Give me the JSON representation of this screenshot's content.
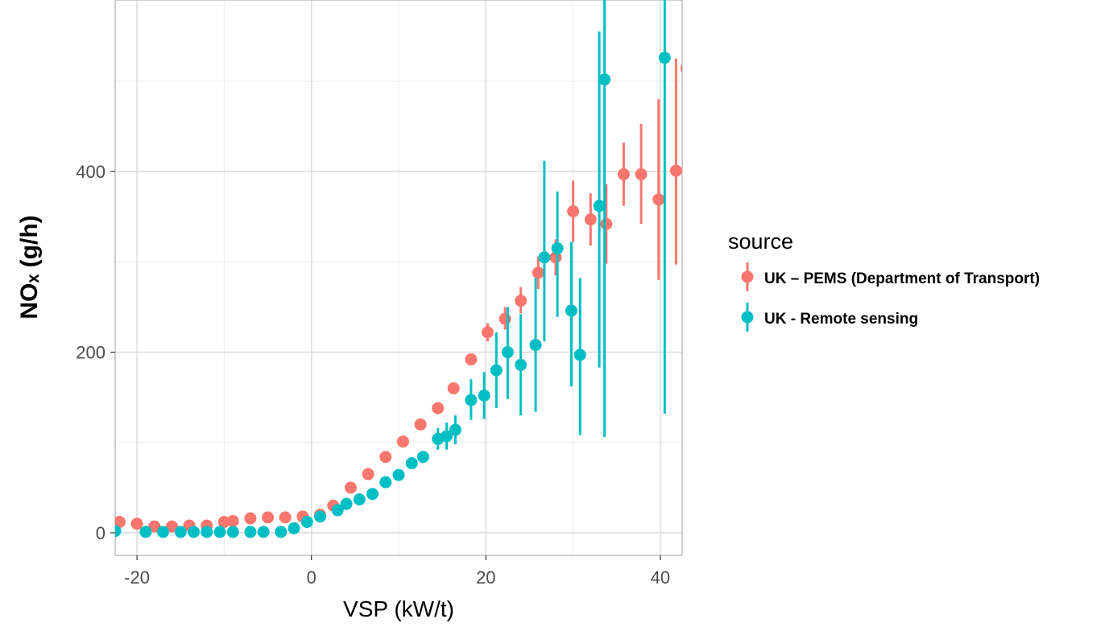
{
  "chart_data": {
    "type": "scatter",
    "xlabel": "VSP (kW/t)",
    "ylabel": "NOₓ (g/h)",
    "xlim": [
      -22.5,
      42.5
    ],
    "ylim": [
      -25,
      590
    ],
    "xticks": [
      -20,
      0,
      20,
      40
    ],
    "yticks": [
      0,
      200,
      400
    ],
    "xtick_labels": [
      "-20",
      "0",
      "20",
      "40"
    ],
    "ytick_labels": [
      "0",
      "200",
      "400"
    ],
    "grid": true,
    "legend": {
      "title": "source",
      "placement": "right"
    },
    "series": [
      {
        "name": "UK – PEMS (Department of Transport)",
        "color": "#f8766d",
        "points": [
          {
            "x": -22,
            "y": 12
          },
          {
            "x": -20,
            "y": 10
          },
          {
            "x": -18,
            "y": 7
          },
          {
            "x": -16,
            "y": 7
          },
          {
            "x": -14,
            "y": 8
          },
          {
            "x": -12,
            "y": 8
          },
          {
            "x": -10,
            "y": 12
          },
          {
            "x": -9,
            "y": 13
          },
          {
            "x": -7,
            "y": 16
          },
          {
            "x": -5,
            "y": 17
          },
          {
            "x": -3,
            "y": 17
          },
          {
            "x": -1,
            "y": 18
          },
          {
            "x": 1,
            "y": 20
          },
          {
            "x": 2.5,
            "y": 30
          },
          {
            "x": 4.5,
            "y": 50
          },
          {
            "x": 6.5,
            "y": 65
          },
          {
            "x": 8.5,
            "y": 84
          },
          {
            "x": 10.5,
            "y": 101
          },
          {
            "x": 12.5,
            "y": 120
          },
          {
            "x": 14.5,
            "y": 138
          },
          {
            "x": 16.3,
            "y": 160
          },
          {
            "x": 18.3,
            "y": 192
          },
          {
            "x": 20.2,
            "y": 222,
            "ymin": 212,
            "ymax": 232
          },
          {
            "x": 22.2,
            "y": 237,
            "ymin": 225,
            "ymax": 250
          },
          {
            "x": 24,
            "y": 257,
            "ymin": 243,
            "ymax": 272
          },
          {
            "x": 26,
            "y": 288,
            "ymin": 270,
            "ymax": 306
          },
          {
            "x": 28,
            "y": 305,
            "ymin": 285,
            "ymax": 325
          },
          {
            "x": 30,
            "y": 356,
            "ymin": 322,
            "ymax": 390
          },
          {
            "x": 32,
            "y": 347,
            "ymin": 318,
            "ymax": 376
          },
          {
            "x": 33.8,
            "y": 342,
            "ymin": 298,
            "ymax": 386
          },
          {
            "x": 35.8,
            "y": 397,
            "ymin": 362,
            "ymax": 432
          },
          {
            "x": 37.8,
            "y": 397,
            "ymin": 342,
            "ymax": 453
          },
          {
            "x": 39.8,
            "y": 369,
            "ymin": 280,
            "ymax": 480
          },
          {
            "x": 41.8,
            "y": 401,
            "ymin": 297,
            "ymax": 525
          },
          {
            "x": 43,
            "y": 514,
            "ymin": 480,
            "ymax": 550
          }
        ]
      },
      {
        "name": "UK - Remote sensing",
        "color": "#00bfc4",
        "points": [
          {
            "x": -22.5,
            "y": 2
          },
          {
            "x": -19,
            "y": 1
          },
          {
            "x": -17,
            "y": 1
          },
          {
            "x": -15,
            "y": 1
          },
          {
            "x": -13.5,
            "y": 1
          },
          {
            "x": -12,
            "y": 1
          },
          {
            "x": -10.5,
            "y": 1
          },
          {
            "x": -9,
            "y": 1
          },
          {
            "x": -7,
            "y": 1
          },
          {
            "x": -5.5,
            "y": 1
          },
          {
            "x": -3.5,
            "y": 1
          },
          {
            "x": -2,
            "y": 5
          },
          {
            "x": -0.5,
            "y": 12
          },
          {
            "x": 1,
            "y": 18
          },
          {
            "x": 3,
            "y": 25
          },
          {
            "x": 4,
            "y": 32
          },
          {
            "x": 5.5,
            "y": 37
          },
          {
            "x": 7,
            "y": 43
          },
          {
            "x": 8.5,
            "y": 56
          },
          {
            "x": 10,
            "y": 64
          },
          {
            "x": 11.5,
            "y": 77
          },
          {
            "x": 12.8,
            "y": 84
          },
          {
            "x": 14.5,
            "y": 104,
            "ymin": 92,
            "ymax": 116
          },
          {
            "x": 15.5,
            "y": 107,
            "ymin": 92,
            "ymax": 122
          },
          {
            "x": 16.5,
            "y": 114,
            "ymin": 98,
            "ymax": 130
          },
          {
            "x": 18.3,
            "y": 147,
            "ymin": 125,
            "ymax": 170
          },
          {
            "x": 19.8,
            "y": 152,
            "ymin": 126,
            "ymax": 178
          },
          {
            "x": 21.2,
            "y": 180,
            "ymin": 138,
            "ymax": 222
          },
          {
            "x": 22.5,
            "y": 200,
            "ymin": 148,
            "ymax": 250
          },
          {
            "x": 24,
            "y": 186,
            "ymin": 130,
            "ymax": 242
          },
          {
            "x": 25.7,
            "y": 208,
            "ymin": 134,
            "ymax": 282
          },
          {
            "x": 26.7,
            "y": 305,
            "ymin": 212,
            "ymax": 412
          },
          {
            "x": 28.2,
            "y": 315,
            "ymin": 239,
            "ymax": 378
          },
          {
            "x": 29.8,
            "y": 246,
            "ymin": 162,
            "ymax": 322
          },
          {
            "x": 30.8,
            "y": 197,
            "ymin": 108,
            "ymax": 282
          },
          {
            "x": 33,
            "y": 362,
            "ymin": 183,
            "ymax": 555
          },
          {
            "x": 33.6,
            "y": 502,
            "ymin": 106,
            "ymax": 590
          },
          {
            "x": 40.5,
            "y": 526,
            "ymin": 132,
            "ymax": 590
          }
        ]
      }
    ]
  }
}
